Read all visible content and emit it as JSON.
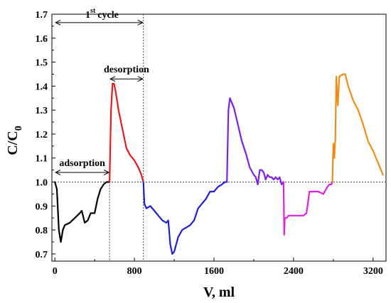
{
  "chart_data": {
    "type": "line",
    "xlabel": "V, ml",
    "ylabel_main": "C/C",
    "ylabel_sub": "0",
    "xlim": [
      -30,
      3330
    ],
    "ylim": [
      0.67,
      1.7
    ],
    "xticks": [
      0,
      800,
      1600,
      2400,
      3200
    ],
    "yticks": [
      0.7,
      0.8,
      0.9,
      1.0,
      1.1,
      1.2,
      1.3,
      1.4,
      1.5,
      1.6,
      1.7
    ],
    "ytick_labels": [
      "0.7",
      "0.8",
      "0.9",
      "1.0",
      "1.1",
      "1.2",
      "1.3",
      "1.4",
      "1.5",
      "1.6",
      "1.7"
    ],
    "reference_line": {
      "y": 1.0,
      "style": "dotted"
    },
    "guide_lines": [
      {
        "x": 550,
        "y_top": 1.0
      },
      {
        "x": 890,
        "y_top": 1.7
      }
    ],
    "annotations": {
      "cycle": {
        "number": "1",
        "superscript": "st",
        "word": "cycle",
        "x_from": 0,
        "x_to": 890,
        "y": 1.665
      },
      "desorption": {
        "text": "desorption",
        "x_from": 550,
        "x_to": 890,
        "y": 1.43
      },
      "adsorption": {
        "text": "adsorption",
        "x_from": 0,
        "x_to": 550,
        "y": 1.04
      }
    },
    "series": [
      {
        "color": "#000000",
        "x": [
          0,
          20,
          40,
          60,
          80,
          100,
          150,
          200,
          250,
          270,
          300,
          330,
          360,
          400,
          430,
          460,
          490,
          520,
          550
        ],
        "y": [
          1.0,
          0.97,
          0.8,
          0.75,
          0.8,
          0.82,
          0.83,
          0.85,
          0.87,
          0.88,
          0.83,
          0.84,
          0.87,
          0.87,
          0.93,
          0.97,
          0.99,
          1.0,
          1.0
        ]
      },
      {
        "color": "#e41a1c",
        "x": [
          550,
          565,
          580,
          595,
          610,
          640,
          680,
          720,
          760,
          800,
          840,
          870,
          890
        ],
        "y": [
          1.0,
          1.3,
          1.41,
          1.41,
          1.38,
          1.3,
          1.22,
          1.14,
          1.11,
          1.09,
          1.06,
          1.03,
          1.0
        ]
      },
      {
        "color": "#1f1fd6",
        "x": [
          890,
          900,
          920,
          960,
          1000,
          1040,
          1080,
          1120,
          1140,
          1160,
          1180,
          1200,
          1240,
          1280,
          1320,
          1360,
          1400,
          1440,
          1480,
          1520,
          1560,
          1600,
          1640,
          1680,
          1710,
          1730
        ],
        "y": [
          1.0,
          0.91,
          0.89,
          0.9,
          0.88,
          0.86,
          0.84,
          0.83,
          0.84,
          0.74,
          0.7,
          0.71,
          0.77,
          0.8,
          0.81,
          0.82,
          0.84,
          0.89,
          0.91,
          0.93,
          0.96,
          0.96,
          0.98,
          0.99,
          1.0,
          1.0
        ]
      },
      {
        "color": "#7b1fe6",
        "x": [
          1730,
          1745,
          1760,
          1800,
          1840,
          1880,
          1920,
          1960,
          2000,
          2020,
          2040,
          2060,
          2080,
          2100,
          2120,
          2140,
          2160,
          2180,
          2200,
          2220,
          2240,
          2260,
          2280,
          2300
        ],
        "y": [
          1.0,
          1.3,
          1.35,
          1.31,
          1.24,
          1.17,
          1.12,
          1.06,
          1.03,
          1.02,
          0.99,
          1.05,
          1.05,
          1.04,
          1.01,
          1.03,
          1.02,
          1.02,
          1.01,
          1.02,
          1.01,
          1.02,
          0.99,
          1.0
        ]
      },
      {
        "color": "#e020e0",
        "x": [
          2300,
          2306,
          2312,
          2330,
          2350,
          2400,
          2450,
          2500,
          2530,
          2560,
          2600,
          2650,
          2700,
          2740,
          2760,
          2780,
          2790
        ],
        "y": [
          1.0,
          0.78,
          0.85,
          0.85,
          0.86,
          0.86,
          0.86,
          0.86,
          0.87,
          0.96,
          0.96,
          0.96,
          0.95,
          0.98,
          0.99,
          0.99,
          1.0
        ]
      },
      {
        "color": "#f08c14",
        "x": [
          2790,
          2800,
          2810,
          2820,
          2830,
          2845,
          2860,
          2900,
          2920,
          2950,
          3000,
          3050,
          3100,
          3150,
          3200,
          3250,
          3300
        ],
        "y": [
          1.0,
          1.16,
          1.1,
          1.18,
          1.44,
          1.32,
          1.44,
          1.45,
          1.45,
          1.4,
          1.34,
          1.3,
          1.24,
          1.17,
          1.13,
          1.08,
          1.03
        ]
      }
    ]
  }
}
